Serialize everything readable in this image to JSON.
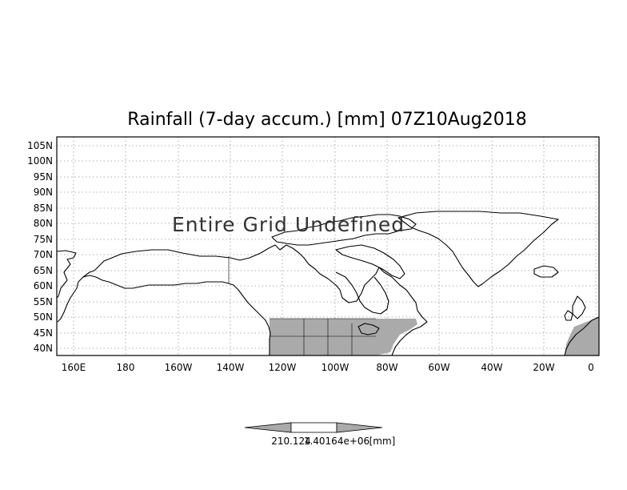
{
  "map": {
    "title": "Rainfall (7-day accum.) [mm] 07Z10Aug2018",
    "overlay_text": "Entire Grid Undefined",
    "lat_ticks": [
      "105N",
      "100N",
      "95N",
      "90N",
      "85N",
      "80N",
      "75N",
      "70N",
      "65N",
      "60N",
      "55N",
      "50N",
      "45N",
      "40N"
    ],
    "lon_ticks": [
      "160E",
      "180",
      "160W",
      "140W",
      "120W",
      "100W",
      "80W",
      "60W",
      "40W",
      "20W",
      "0"
    ],
    "lat_range": [
      38,
      108
    ],
    "lon_range": [
      155,
      360
    ],
    "grid": true,
    "colors": {
      "background": "#ffffff",
      "coastline": "#000000",
      "data_fill": "#aaaaaa",
      "grid": "#9a9a9a"
    }
  },
  "colorbar": {
    "label_left": "210.124",
    "label_mid": "1.40164e+06",
    "unit": "[mm]",
    "fill_left": "#aaaaaa",
    "fill_mid": "#ffffff",
    "fill_right": "#aaaaaa"
  }
}
